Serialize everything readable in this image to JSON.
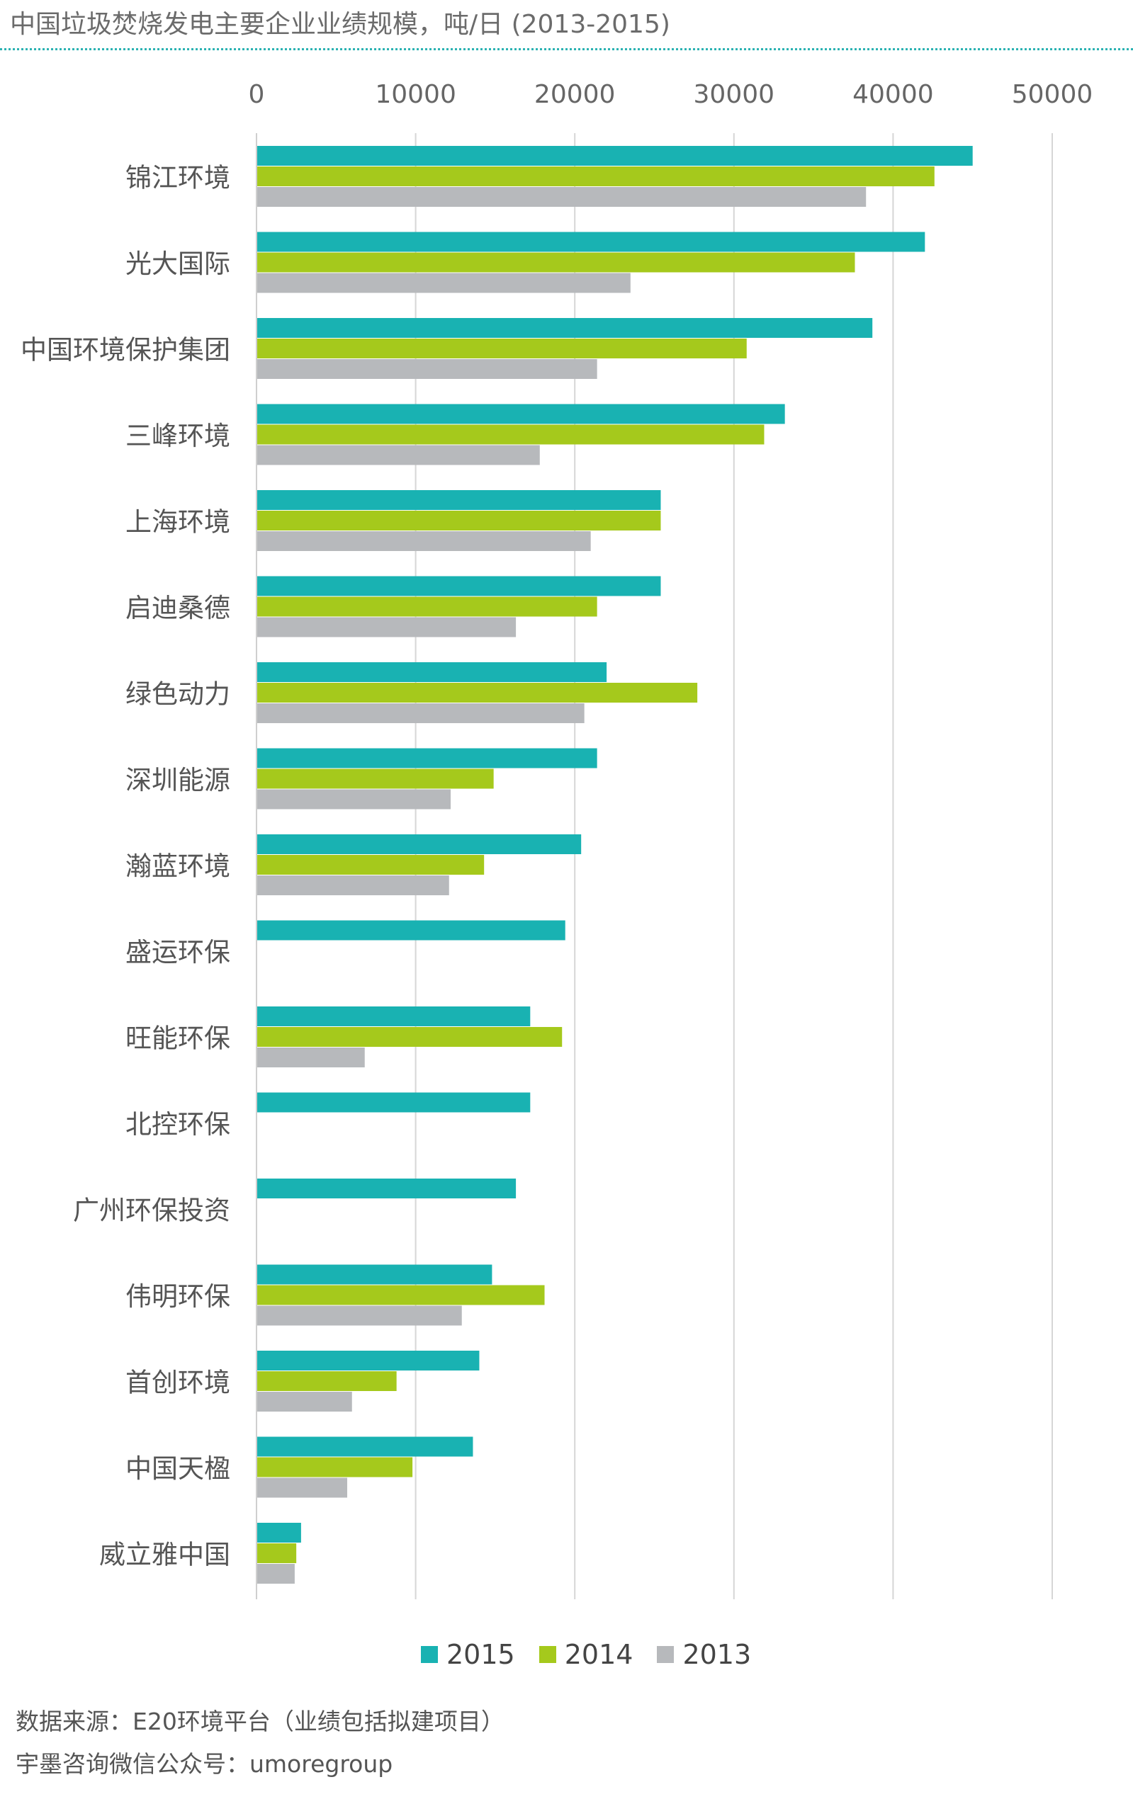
{
  "title": "中国垃圾焚烧发电主要企业业绩规模，吨/日 (2013-2015)",
  "footer": {
    "source": "数据来源：E20环境平台（业绩包括拟建项目）",
    "account": "宇墨咨询微信公众号：umoregroup"
  },
  "chart_data": {
    "type": "bar",
    "orientation": "horizontal",
    "title": "中国垃圾焚烧发电主要企业业绩规模，吨/日 (2013-2015)",
    "xlim": [
      0,
      50000
    ],
    "xticks": [
      0,
      10000,
      20000,
      30000,
      40000,
      50000
    ],
    "grid": "vertical",
    "legend_position": "bottom",
    "categories": [
      "锦江环境",
      "光大国际",
      "中国环境保护集团",
      "三峰环境",
      "上海环境",
      "启迪桑德",
      "绿色动力",
      "深圳能源",
      "瀚蓝环境",
      "盛运环保",
      "旺能环保",
      "北控环保",
      "广州环保投资",
      "伟明环保",
      "首创环境",
      "中国天楹",
      "威立雅中国"
    ],
    "series": [
      {
        "name": "2015",
        "color": "#19b2b2",
        "values": [
          45000,
          42000,
          38700,
          33200,
          25400,
          25400,
          22000,
          21400,
          20400,
          19400,
          17200,
          17200,
          16300,
          14800,
          14000,
          13600,
          2800
        ]
      },
      {
        "name": "2014",
        "color": "#a5c91c",
        "values": [
          42600,
          37600,
          30800,
          31900,
          25400,
          21400,
          27700,
          14900,
          14300,
          null,
          19200,
          null,
          null,
          18100,
          8800,
          9800,
          2500
        ]
      },
      {
        "name": "2013",
        "color": "#b7b9bc",
        "values": [
          38300,
          23500,
          21400,
          17800,
          21000,
          16300,
          20600,
          12200,
          12100,
          null,
          6800,
          null,
          null,
          12900,
          6000,
          5700,
          2400
        ]
      }
    ]
  }
}
